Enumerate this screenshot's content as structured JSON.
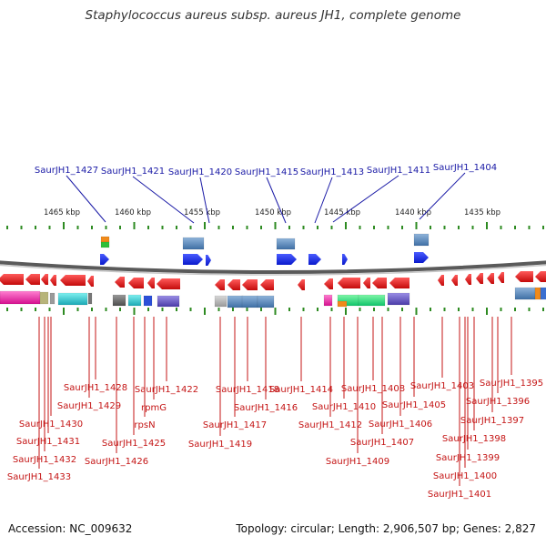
{
  "title": "Staphylococcus aureus subsp. aureus JH1, complete genome",
  "footer": {
    "accession": "Accession: NC_009632",
    "summary": "Topology: circular; Length: 2,906,507 bp; Genes: 2,827"
  },
  "scale_labels": [
    "1465 kbp",
    "1460 kbp",
    "1455 kbp",
    "1450 kbp",
    "1445 kbp",
    "1440 kbp",
    "1435 kbp"
  ],
  "top_labels": [
    "SaurJH1_1427",
    "SaurJH1_1421",
    "SaurJH1_1420",
    "SaurJH1_1415",
    "SaurJH1_1413",
    "SaurJH1_1411",
    "SaurJH1_1404"
  ],
  "bottom_labels": [
    "SaurJH1_1433",
    "SaurJH1_1432",
    "SaurJH1_1431",
    "SaurJH1_1430",
    "SaurJH1_1429",
    "SaurJH1_1428",
    "SaurJH1_1426",
    "SaurJH1_1425",
    "rpsN",
    "rpmG",
    "SaurJH1_1422",
    "SaurJH1_1419",
    "SaurJH1_1417",
    "SaurJH1_1418",
    "SaurJH1_1416",
    "SaurJH1_1414",
    "SaurJH1_1412",
    "SaurJH1_1410",
    "SaurJH1_1408",
    "SaurJH1_1409",
    "SaurJH1_1407",
    "SaurJH1_1406",
    "SaurJH1_1405",
    "SaurJH1_1403",
    "SaurJH1_1401",
    "SaurJH1_1400",
    "SaurJH1_1399",
    "SaurJH1_1398",
    "SaurJH1_1397",
    "SaurJH1_1396",
    "SaurJH1_1395"
  ],
  "colors": {
    "forward_gene": "#1a2ee6",
    "reverse_gene": "#e60f14",
    "label_blue": "#1a1aa6",
    "label_red": "#c41414",
    "tick_green": "#2e8b22",
    "backbone": "#888888"
  }
}
